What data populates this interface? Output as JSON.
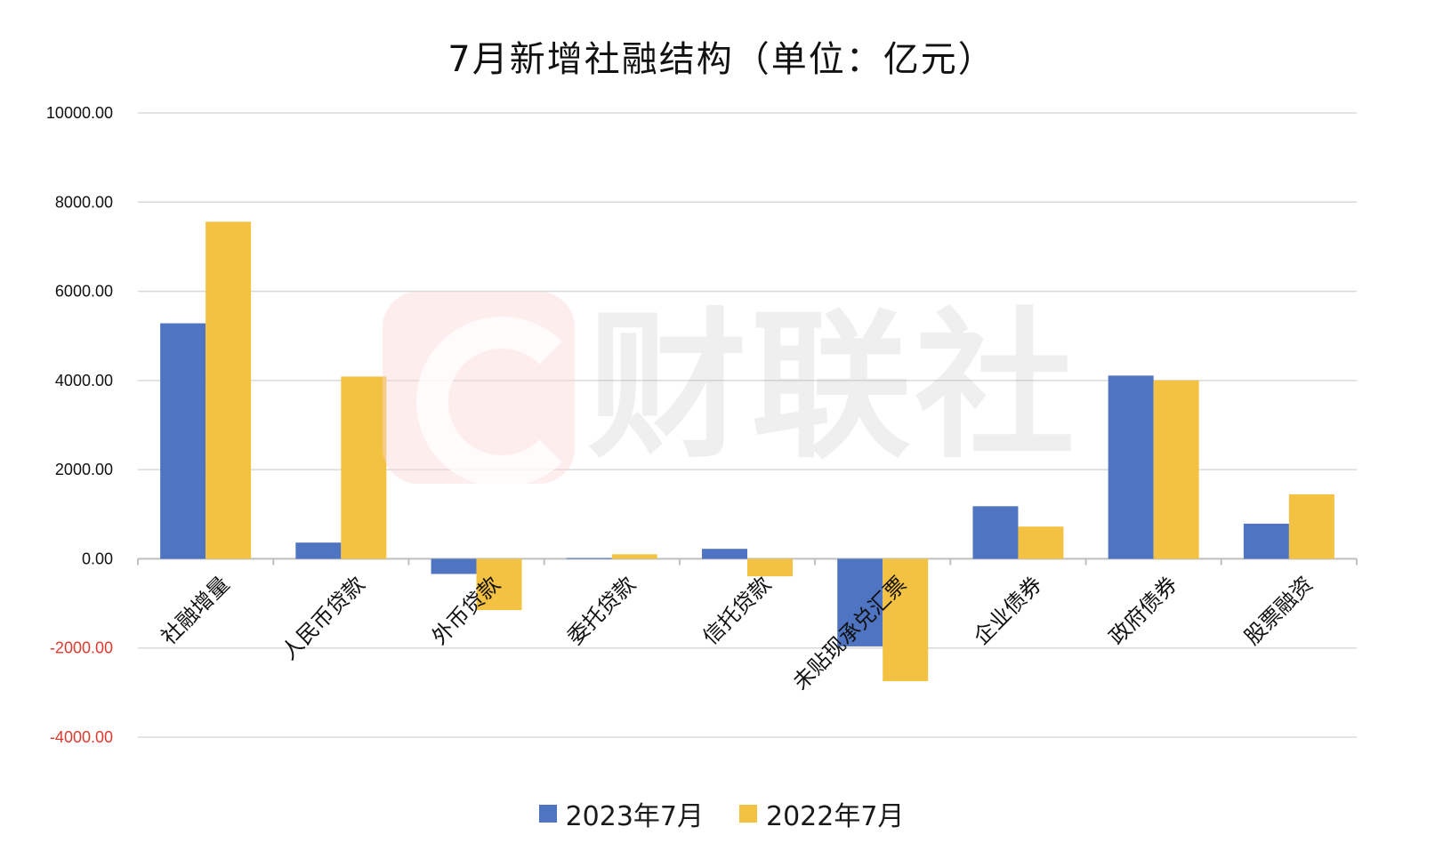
{
  "chart_data": {
    "type": "bar",
    "title": "7月新增社融结构（单位：亿元）",
    "categories": [
      "社融增量",
      "人民币贷款",
      "外币贷款",
      "委托贷款",
      "信托贷款",
      "未贴现承兑汇票",
      "企业债券",
      "政府债券",
      "股票融资"
    ],
    "series": [
      {
        "name": "2023年7月",
        "color": "#4e74c2",
        "values": [
          5282,
          364,
          -339,
          17,
          224,
          -1964,
          1179,
          4109,
          788
        ]
      },
      {
        "name": "2022年7月",
        "color": "#f4c243",
        "values": [
          7561,
          4088,
          -1149,
          101,
          -392,
          -2743,
          723,
          4001,
          1447
        ]
      }
    ],
    "ylim": [
      -4000,
      10000
    ],
    "yticks": [
      "10000.00",
      "8000.00",
      "6000.00",
      "4000.00",
      "2000.00",
      "0.00",
      "-2000.00",
      "-4000.00"
    ],
    "ytick_values": [
      10000,
      8000,
      6000,
      4000,
      2000,
      0,
      -2000,
      -4000
    ],
    "negative_tick_color": "#e03a2f",
    "grid": true,
    "legend_position": "bottom"
  },
  "watermark": {
    "text": "财联社"
  }
}
